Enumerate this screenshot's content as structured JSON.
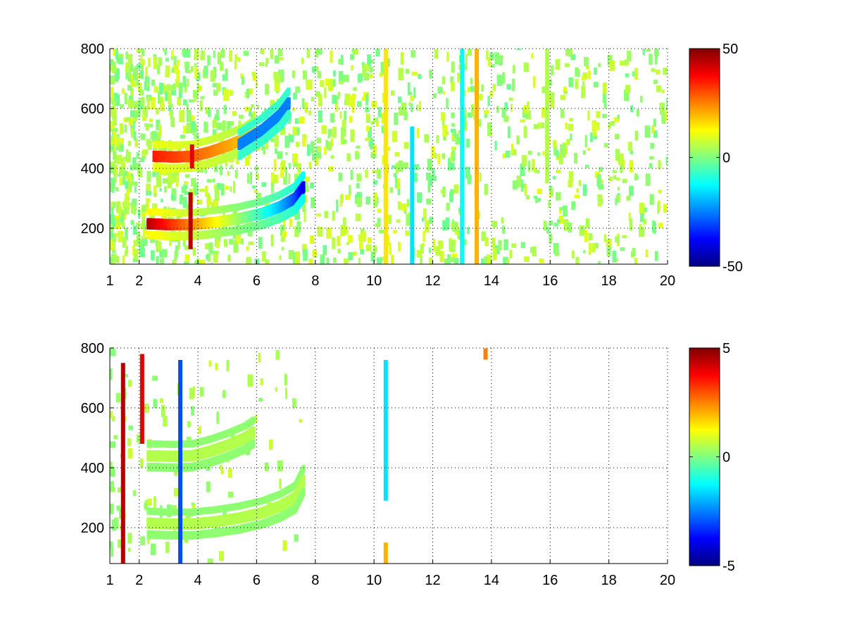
{
  "chart_data": [
    {
      "type": "heatmap",
      "title": "",
      "xlabel": "",
      "ylabel": "",
      "xlim": [
        1,
        20
      ],
      "ylim": [
        80,
        800
      ],
      "xticks": [
        1,
        2,
        4,
        6,
        8,
        10,
        12,
        14,
        16,
        18,
        20
      ],
      "yticks": [
        200,
        400,
        600,
        800
      ],
      "grid": true,
      "colormap": "jet",
      "clim": [
        -50,
        50
      ],
      "colorbar_ticks": [
        -50,
        0,
        50
      ],
      "features": [
        {
          "kind": "curve",
          "label_hint": "lower ridge, strong positive then negative",
          "points": [
            [
              2.3,
              215
            ],
            [
              3.0,
              212
            ],
            [
              3.8,
              212
            ],
            [
              4.6,
              220
            ],
            [
              5.4,
              232
            ],
            [
              6.2,
              250
            ],
            [
              6.8,
              272
            ],
            [
              7.3,
              300
            ],
            [
              7.6,
              340
            ]
          ],
          "value_start": 45,
          "value_end": -40
        },
        {
          "kind": "curve",
          "label_hint": "upper ridge",
          "points": [
            [
              2.5,
              440
            ],
            [
              3.2,
              438
            ],
            [
              3.8,
              440
            ],
            [
              4.4,
              455
            ],
            [
              5.0,
              475
            ],
            [
              5.6,
              500
            ],
            [
              5.9,
              520
            ]
          ],
          "value_start": 35,
          "value_end": 15
        },
        {
          "kind": "curve",
          "label_hint": "faint high ridge",
          "points": [
            [
              5.4,
              480
            ],
            [
              6.2,
              530
            ],
            [
              6.8,
              580
            ],
            [
              7.1,
              620
            ]
          ],
          "value_start": -25,
          "value_end": -25
        },
        {
          "kind": "vertical_streak",
          "x": 3.75,
          "y": [
            130,
            320
          ],
          "value": 45
        },
        {
          "kind": "vertical_streak",
          "x": 3.8,
          "y": [
            400,
            480
          ],
          "value": 40
        },
        {
          "kind": "vertical_streak",
          "x": 10.4,
          "y": [
            80,
            800
          ],
          "value": 15
        },
        {
          "kind": "vertical_streak",
          "x": 11.3,
          "y": [
            80,
            540
          ],
          "value": -15
        },
        {
          "kind": "vertical_streak",
          "x": 13.0,
          "y": [
            80,
            800
          ],
          "value": -12
        },
        {
          "kind": "vertical_streak",
          "x": 13.5,
          "y": [
            80,
            800
          ],
          "value": 20
        },
        {
          "kind": "vertical_streak",
          "x": 15.9,
          "y": [
            350,
            800
          ],
          "value": 5
        }
      ]
    },
    {
      "type": "heatmap",
      "title": "",
      "xlabel": "",
      "ylabel": "",
      "xlim": [
        1,
        20
      ],
      "ylim": [
        80,
        800
      ],
      "xticks": [
        1,
        2,
        4,
        6,
        8,
        10,
        12,
        14,
        16,
        18,
        20
      ],
      "yticks": [
        200,
        400,
        600,
        800
      ],
      "grid": true,
      "colormap": "jet",
      "clim": [
        -5,
        5
      ],
      "colorbar_ticks": [
        -5,
        0,
        5
      ],
      "features": [
        {
          "kind": "curve",
          "label_hint": "lower ridge",
          "points": [
            [
              2.3,
              215
            ],
            [
              3.0,
              212
            ],
            [
              3.8,
              212
            ],
            [
              4.6,
              220
            ],
            [
              5.4,
              232
            ],
            [
              6.2,
              250
            ],
            [
              6.8,
              272
            ],
            [
              7.3,
              300
            ],
            [
              7.6,
              360
            ]
          ],
          "value_start": 0.5,
          "value_end": 0.5
        },
        {
          "kind": "curve",
          "label_hint": "upper ridge",
          "points": [
            [
              2.3,
              440
            ],
            [
              3.2,
              438
            ],
            [
              3.8,
              440
            ],
            [
              4.4,
              455
            ],
            [
              5.0,
              475
            ],
            [
              5.6,
              500
            ],
            [
              5.9,
              520
            ]
          ],
          "value_start": 0.5,
          "value_end": 0.5
        },
        {
          "kind": "vertical_streak",
          "x": 1.45,
          "y": [
            80,
            750
          ],
          "value": 4.5
        },
        {
          "kind": "vertical_streak",
          "x": 2.1,
          "y": [
            480,
            780
          ],
          "value": 4
        },
        {
          "kind": "vertical_streak",
          "x": 3.4,
          "y": [
            80,
            760
          ],
          "value": -3
        },
        {
          "kind": "vertical_streak",
          "x": 10.4,
          "y": [
            290,
            760
          ],
          "value": -1.5
        },
        {
          "kind": "vertical_streak",
          "x": 10.4,
          "y": [
            80,
            150
          ],
          "value": 2
        },
        {
          "kind": "spot",
          "x": 13.8,
          "y": 780,
          "value": 2.5
        }
      ]
    }
  ]
}
